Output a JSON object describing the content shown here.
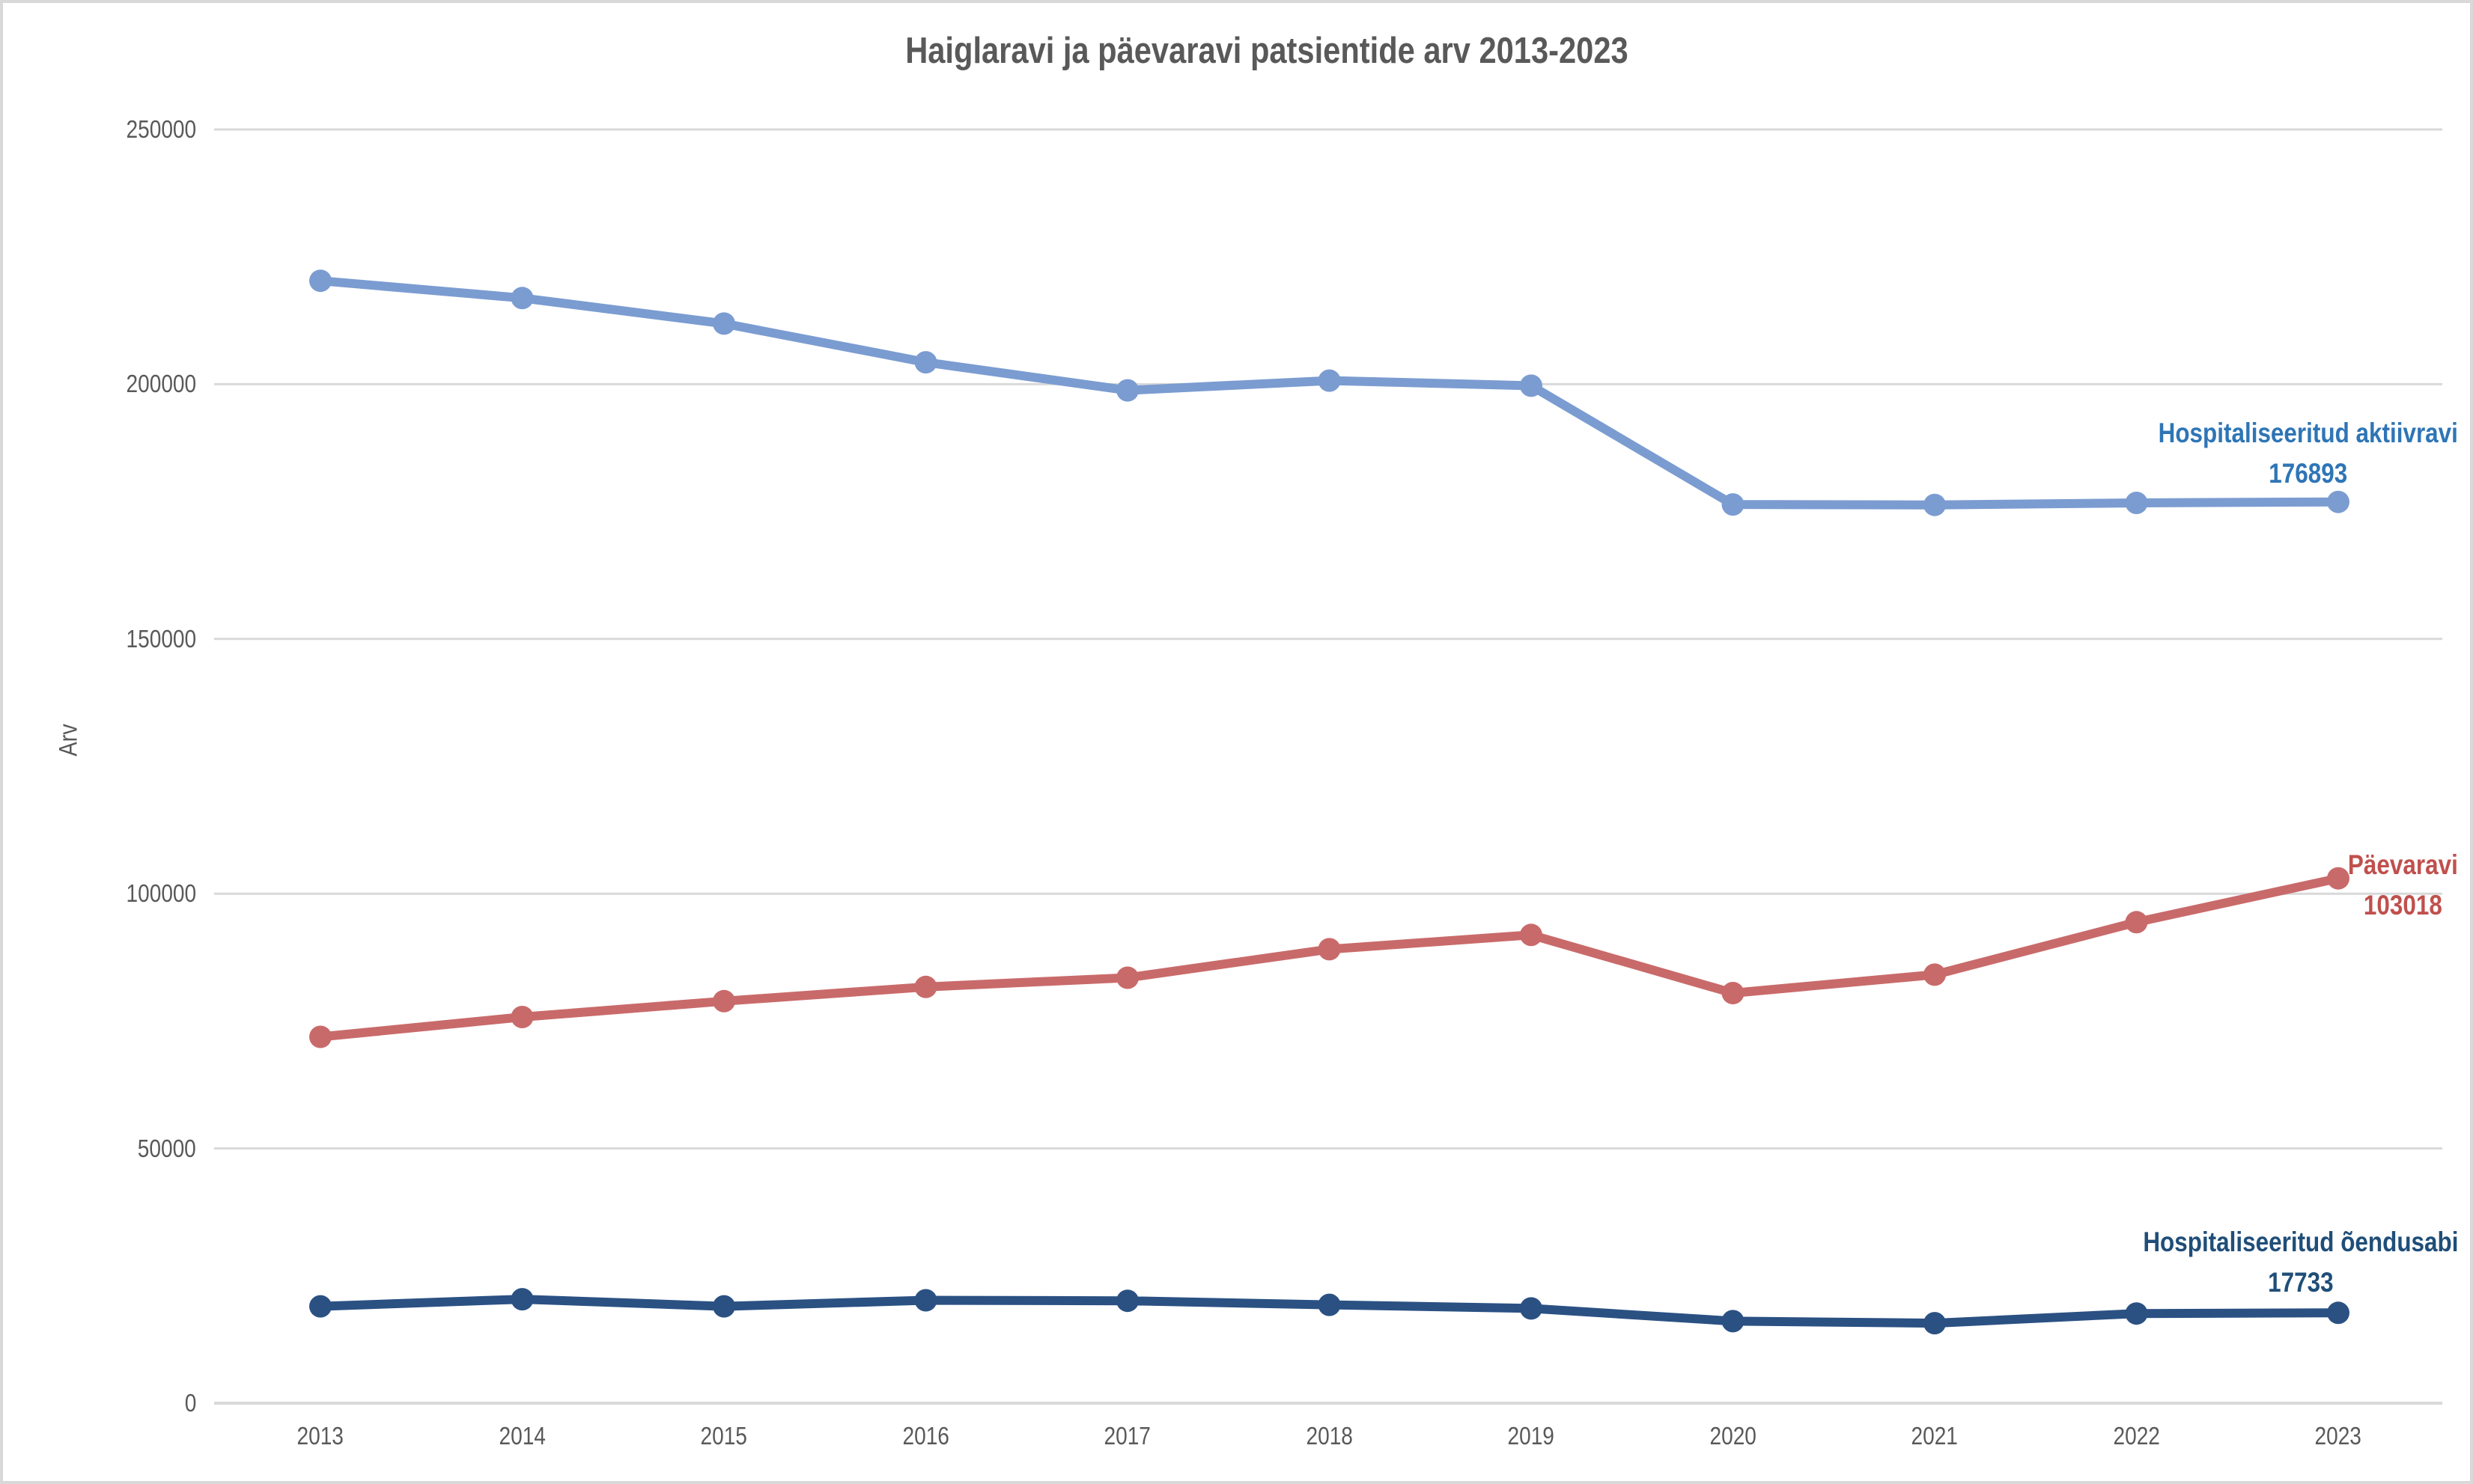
{
  "chart_data": {
    "type": "line",
    "title": "Haiglaravi ja päevaravi patsientide arv 2013-2023",
    "ylabel": "Arv",
    "xlabel": "",
    "ylim": [
      0,
      250000
    ],
    "ytick_interval": 50000,
    "yticks": [
      0,
      50000,
      100000,
      150000,
      200000,
      250000
    ],
    "ytick_labels": [
      "0",
      "50000",
      "100000",
      "150000",
      "200000",
      "250000"
    ],
    "categories": [
      "2013",
      "2014",
      "2015",
      "2016",
      "2017",
      "2018",
      "2019",
      "2020",
      "2021",
      "2022",
      "2023"
    ],
    "grid": true,
    "legend_position": "series-end-labels",
    "axis_color": "#D9D9D9",
    "text_color": "#595959",
    "series": [
      {
        "name": "Hospitaliseeritud aktiivravi",
        "end_value_label": "176893",
        "line_color": "#7B9CD1",
        "label_color": "#2E75B6",
        "values": [
          220300,
          216900,
          211900,
          204300,
          198800,
          200700,
          199700,
          176400,
          176300,
          176700,
          176893
        ]
      },
      {
        "name": "Päevaravi",
        "end_value_label": "103018",
        "line_color": "#C96A6A",
        "label_color": "#C0504D",
        "values": [
          71900,
          75800,
          78900,
          81700,
          83500,
          89100,
          91900,
          80500,
          84100,
          94400,
          103018
        ]
      },
      {
        "name": "Hospitaliseeritud õendusabi",
        "end_value_label": "17733",
        "line_color": "#2B5183",
        "label_color": "#1F4E79",
        "values": [
          19000,
          20400,
          19000,
          20200,
          20100,
          19300,
          18600,
          16100,
          15700,
          17600,
          17733
        ]
      }
    ]
  }
}
